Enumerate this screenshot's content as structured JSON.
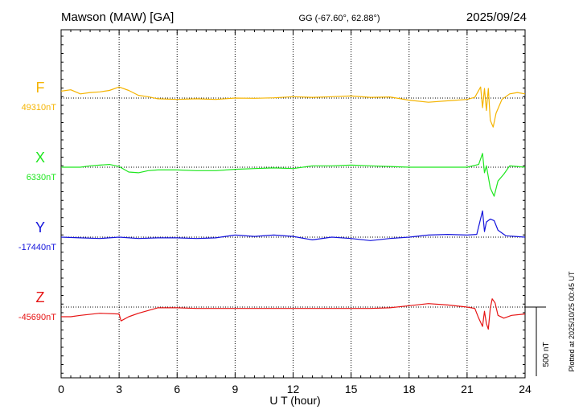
{
  "header": {
    "station": "Mawson (MAW)  [GA]",
    "coords": "GG (-67.60°,  62.88°)",
    "date": "2025/09/24"
  },
  "footer": {
    "plotted": "Plotted at 2025/10/25 00:45 UT"
  },
  "chart_data": {
    "type": "line",
    "title": "Mawson (MAW)  [GA]",
    "xlabel": "U T (hour)",
    "xlim": [
      0,
      24
    ],
    "xticks": [
      "0",
      "3",
      "6",
      "9",
      "12",
      "15",
      "18",
      "21",
      "24"
    ],
    "grid": true,
    "scale_bar": {
      "label": "500 nT",
      "value_nT": 500
    },
    "series": [
      {
        "name": "F",
        "baseline_label": "49310nT",
        "baseline_nT": 49310,
        "color": "#f5b400",
        "points": [
          [
            0,
            49360
          ],
          [
            0.5,
            49370
          ],
          [
            1,
            49340
          ],
          [
            1.5,
            49350
          ],
          [
            2,
            49355
          ],
          [
            2.5,
            49365
          ],
          [
            3,
            49390
          ],
          [
            3.5,
            49365
          ],
          [
            4,
            49330
          ],
          [
            4.5,
            49320
          ],
          [
            5,
            49305
          ],
          [
            6,
            49300
          ],
          [
            7,
            49305
          ],
          [
            8,
            49300
          ],
          [
            9,
            49310
          ],
          [
            10,
            49308
          ],
          [
            11,
            49312
          ],
          [
            12,
            49320
          ],
          [
            13,
            49315
          ],
          [
            14,
            49320
          ],
          [
            15,
            49325
          ],
          [
            16,
            49315
          ],
          [
            17,
            49318
          ],
          [
            18,
            49295
          ],
          [
            19,
            49280
          ],
          [
            20,
            49290
          ],
          [
            21,
            49300
          ],
          [
            21.4,
            49315
          ],
          [
            21.7,
            49390
          ],
          [
            21.8,
            49240
          ],
          [
            21.9,
            49380
          ],
          [
            22.0,
            49220
          ],
          [
            22.1,
            49380
          ],
          [
            22.2,
            49150
          ],
          [
            22.35,
            49100
          ],
          [
            22.5,
            49200
          ],
          [
            22.8,
            49300
          ],
          [
            23.2,
            49340
          ],
          [
            23.6,
            49350
          ],
          [
            24,
            49340
          ]
        ]
      },
      {
        "name": "X",
        "baseline_label": "6330nT",
        "baseline_nT": 6330,
        "color": "#1ee61e",
        "points": [
          [
            0,
            6330
          ],
          [
            1,
            6330
          ],
          [
            1.5,
            6340
          ],
          [
            2,
            6345
          ],
          [
            2.5,
            6350
          ],
          [
            3,
            6335
          ],
          [
            3.5,
            6295
          ],
          [
            4,
            6290
          ],
          [
            4.5,
            6305
          ],
          [
            5,
            6310
          ],
          [
            6,
            6310
          ],
          [
            7,
            6305
          ],
          [
            8,
            6305
          ],
          [
            9,
            6315
          ],
          [
            10,
            6320
          ],
          [
            11,
            6325
          ],
          [
            12,
            6320
          ],
          [
            13,
            6340
          ],
          [
            14,
            6340
          ],
          [
            15,
            6345
          ],
          [
            16,
            6340
          ],
          [
            17,
            6335
          ],
          [
            18,
            6330
          ],
          [
            19,
            6330
          ],
          [
            20,
            6330
          ],
          [
            21,
            6330
          ],
          [
            21.6,
            6350
          ],
          [
            21.8,
            6430
          ],
          [
            21.9,
            6290
          ],
          [
            22.0,
            6340
          ],
          [
            22.2,
            6180
          ],
          [
            22.4,
            6120
          ],
          [
            22.6,
            6230
          ],
          [
            22.9,
            6280
          ],
          [
            23.2,
            6340
          ],
          [
            24,
            6330
          ]
        ]
      },
      {
        "name": "Y",
        "baseline_label": "-17440nT",
        "baseline_nT": -17440,
        "color": "#1414dc",
        "points": [
          [
            0,
            -17440
          ],
          [
            1,
            -17445
          ],
          [
            2,
            -17450
          ],
          [
            3,
            -17440
          ],
          [
            4,
            -17450
          ],
          [
            5,
            -17445
          ],
          [
            6,
            -17445
          ],
          [
            7,
            -17450
          ],
          [
            8,
            -17445
          ],
          [
            9,
            -17425
          ],
          [
            10,
            -17435
          ],
          [
            11,
            -17425
          ],
          [
            12,
            -17435
          ],
          [
            13,
            -17460
          ],
          [
            14,
            -17440
          ],
          [
            15,
            -17450
          ],
          [
            16,
            -17465
          ],
          [
            17,
            -17450
          ],
          [
            18,
            -17440
          ],
          [
            19,
            -17425
          ],
          [
            20,
            -17420
          ],
          [
            21,
            -17425
          ],
          [
            21.5,
            -17420
          ],
          [
            21.8,
            -17250
          ],
          [
            21.9,
            -17400
          ],
          [
            22.0,
            -17330
          ],
          [
            22.2,
            -17310
          ],
          [
            22.4,
            -17320
          ],
          [
            22.6,
            -17390
          ],
          [
            23,
            -17430
          ],
          [
            24,
            -17440
          ]
        ]
      },
      {
        "name": "Z",
        "baseline_label": "-45690nT",
        "baseline_nT": -45690,
        "color": "#e61414",
        "points": [
          [
            0,
            -45760
          ],
          [
            0.5,
            -45760
          ],
          [
            1,
            -45750
          ],
          [
            2,
            -45735
          ],
          [
            3,
            -45740
          ],
          [
            3.1,
            -45790
          ],
          [
            3.5,
            -45760
          ],
          [
            4,
            -45735
          ],
          [
            5,
            -45695
          ],
          [
            6,
            -45695
          ],
          [
            7,
            -45700
          ],
          [
            8,
            -45700
          ],
          [
            9,
            -45700
          ],
          [
            10,
            -45700
          ],
          [
            11,
            -45700
          ],
          [
            12,
            -45700
          ],
          [
            13,
            -45700
          ],
          [
            14,
            -45700
          ],
          [
            15,
            -45700
          ],
          [
            16,
            -45700
          ],
          [
            17,
            -45695
          ],
          [
            18,
            -45680
          ],
          [
            19,
            -45665
          ],
          [
            20,
            -45675
          ],
          [
            21,
            -45690
          ],
          [
            21.4,
            -45700
          ],
          [
            21.6,
            -45770
          ],
          [
            21.8,
            -45830
          ],
          [
            21.9,
            -45720
          ],
          [
            22.0,
            -45810
          ],
          [
            22.1,
            -45850
          ],
          [
            22.2,
            -45700
          ],
          [
            22.3,
            -45630
          ],
          [
            22.45,
            -45660
          ],
          [
            22.6,
            -45750
          ],
          [
            22.9,
            -45770
          ],
          [
            23.3,
            -45750
          ],
          [
            24,
            -45740
          ]
        ]
      }
    ]
  }
}
